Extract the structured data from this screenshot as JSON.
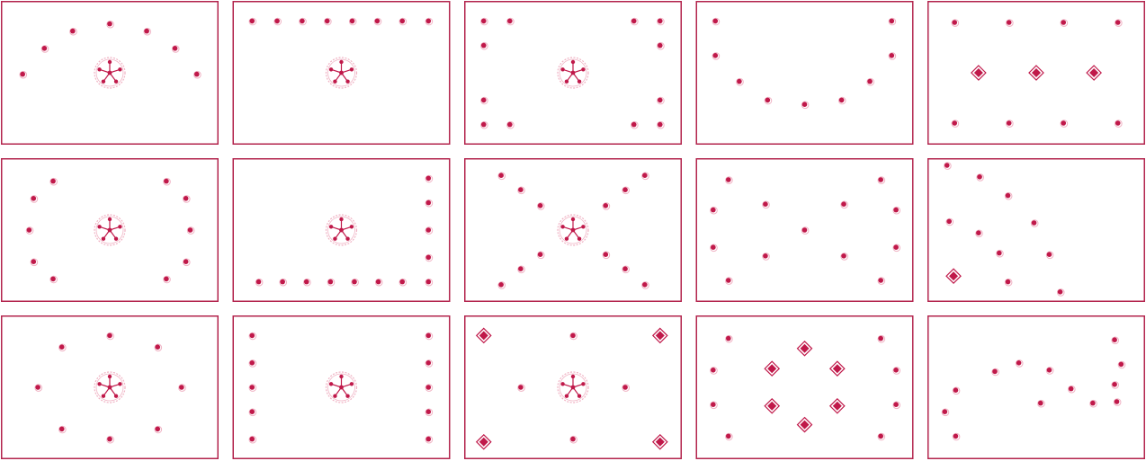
{
  "colors": {
    "frame": "#b3244d",
    "mark": "#c0194a",
    "hub_ring": "#f0b3c4",
    "background": "#ffffff"
  },
  "icons": {
    "point": "circle-dot-icon",
    "anchor": "diamond-icon",
    "hub": "hub-spoke-icon"
  },
  "panels": [
    {
      "name": "panel-arc-with-hub",
      "hub": [
        0.5,
        0.5
      ],
      "points": [
        [
          0.5,
          0.16
        ],
        [
          0.33,
          0.21
        ],
        [
          0.67,
          0.21
        ],
        [
          0.2,
          0.33
        ],
        [
          0.8,
          0.33
        ],
        [
          0.1,
          0.51
        ],
        [
          0.9,
          0.51
        ]
      ],
      "anchors": []
    },
    {
      "name": "panel-top-row-with-hub",
      "hub": [
        0.5,
        0.5
      ],
      "points": [
        [
          0.09,
          0.14
        ],
        [
          0.205,
          0.14
        ],
        [
          0.32,
          0.14
        ],
        [
          0.435,
          0.14
        ],
        [
          0.55,
          0.14
        ],
        [
          0.665,
          0.14
        ],
        [
          0.78,
          0.14
        ],
        [
          0.9,
          0.14
        ]
      ],
      "anchors": []
    },
    {
      "name": "panel-corners-with-hub",
      "hub": [
        0.5,
        0.5
      ],
      "points": [
        [
          0.09,
          0.14
        ],
        [
          0.21,
          0.14
        ],
        [
          0.78,
          0.14
        ],
        [
          0.9,
          0.14
        ],
        [
          0.09,
          0.31
        ],
        [
          0.9,
          0.31
        ],
        [
          0.09,
          0.69
        ],
        [
          0.9,
          0.69
        ],
        [
          0.09,
          0.86
        ],
        [
          0.21,
          0.86
        ],
        [
          0.78,
          0.86
        ],
        [
          0.9,
          0.86
        ]
      ],
      "anchors": []
    },
    {
      "name": "panel-u-curve",
      "hub": null,
      "points": [
        [
          0.09,
          0.14
        ],
        [
          0.9,
          0.14
        ],
        [
          0.09,
          0.38
        ],
        [
          0.9,
          0.38
        ],
        [
          0.2,
          0.56
        ],
        [
          0.8,
          0.56
        ],
        [
          0.33,
          0.69
        ],
        [
          0.67,
          0.69
        ],
        [
          0.5,
          0.72
        ]
      ],
      "anchors": []
    },
    {
      "name": "panel-grid-with-diamonds",
      "hub": null,
      "points": [
        [
          0.125,
          0.15
        ],
        [
          0.375,
          0.15
        ],
        [
          0.625,
          0.15
        ],
        [
          0.875,
          0.15
        ],
        [
          0.125,
          0.85
        ],
        [
          0.375,
          0.85
        ],
        [
          0.625,
          0.85
        ],
        [
          0.875,
          0.85
        ]
      ],
      "anchors": [
        [
          0.235,
          0.5
        ],
        [
          0.5,
          0.5
        ],
        [
          0.765,
          0.5
        ]
      ]
    },
    {
      "name": "panel-ring-with-hub",
      "hub": [
        0.5,
        0.5
      ],
      "points": [
        [
          0.24,
          0.16
        ],
        [
          0.76,
          0.16
        ],
        [
          0.15,
          0.28
        ],
        [
          0.85,
          0.28
        ],
        [
          0.13,
          0.5
        ],
        [
          0.87,
          0.5
        ],
        [
          0.15,
          0.72
        ],
        [
          0.85,
          0.72
        ],
        [
          0.24,
          0.84
        ],
        [
          0.76,
          0.84
        ]
      ],
      "anchors": []
    },
    {
      "name": "panel-l-shape-with-hub",
      "hub": [
        0.5,
        0.5
      ],
      "points": [
        [
          0.9,
          0.14
        ],
        [
          0.9,
          0.31
        ],
        [
          0.9,
          0.5
        ],
        [
          0.9,
          0.69
        ],
        [
          0.12,
          0.86
        ],
        [
          0.23,
          0.86
        ],
        [
          0.34,
          0.86
        ],
        [
          0.45,
          0.86
        ],
        [
          0.56,
          0.86
        ],
        [
          0.67,
          0.86
        ],
        [
          0.78,
          0.86
        ],
        [
          0.9,
          0.86
        ]
      ],
      "anchors": []
    },
    {
      "name": "panel-x-shape-with-hub",
      "hub": [
        0.5,
        0.5
      ],
      "points": [
        [
          0.17,
          0.12
        ],
        [
          0.83,
          0.12
        ],
        [
          0.26,
          0.22
        ],
        [
          0.74,
          0.22
        ],
        [
          0.35,
          0.33
        ],
        [
          0.65,
          0.33
        ],
        [
          0.35,
          0.67
        ],
        [
          0.65,
          0.67
        ],
        [
          0.26,
          0.77
        ],
        [
          0.74,
          0.77
        ],
        [
          0.17,
          0.88
        ],
        [
          0.83,
          0.88
        ]
      ],
      "anchors": []
    },
    {
      "name": "panel-scattered-grid",
      "hub": null,
      "points": [
        [
          0.15,
          0.15
        ],
        [
          0.85,
          0.15
        ],
        [
          0.08,
          0.36
        ],
        [
          0.92,
          0.36
        ],
        [
          0.32,
          0.32
        ],
        [
          0.68,
          0.32
        ],
        [
          0.5,
          0.5
        ],
        [
          0.08,
          0.62
        ],
        [
          0.92,
          0.62
        ],
        [
          0.32,
          0.68
        ],
        [
          0.68,
          0.68
        ],
        [
          0.15,
          0.85
        ],
        [
          0.85,
          0.85
        ]
      ],
      "anchors": []
    },
    {
      "name": "panel-diagonal-scatter",
      "hub": null,
      "points": [
        [
          0.09,
          0.05
        ],
        [
          0.24,
          0.13
        ],
        [
          0.37,
          0.26
        ],
        [
          0.1,
          0.44
        ],
        [
          0.235,
          0.52
        ],
        [
          0.49,
          0.45
        ],
        [
          0.33,
          0.66
        ],
        [
          0.56,
          0.67
        ],
        [
          0.37,
          0.86
        ],
        [
          0.61,
          0.93
        ]
      ],
      "anchors": [
        [
          0.12,
          0.82
        ]
      ]
    },
    {
      "name": "panel-hexagon-with-hub",
      "hub": [
        0.5,
        0.5
      ],
      "points": [
        [
          0.5,
          0.14
        ],
        [
          0.28,
          0.22
        ],
        [
          0.72,
          0.22
        ],
        [
          0.17,
          0.5
        ],
        [
          0.83,
          0.5
        ],
        [
          0.28,
          0.79
        ],
        [
          0.72,
          0.79
        ],
        [
          0.5,
          0.86
        ]
      ],
      "anchors": []
    },
    {
      "name": "panel-side-columns-with-hub",
      "hub": [
        0.5,
        0.5
      ],
      "points": [
        [
          0.09,
          0.14
        ],
        [
          0.9,
          0.14
        ],
        [
          0.09,
          0.33
        ],
        [
          0.9,
          0.33
        ],
        [
          0.09,
          0.5
        ],
        [
          0.9,
          0.5
        ],
        [
          0.09,
          0.67
        ],
        [
          0.9,
          0.67
        ],
        [
          0.09,
          0.86
        ],
        [
          0.9,
          0.86
        ]
      ],
      "anchors": []
    },
    {
      "name": "panel-cross-with-diamonds",
      "hub": [
        0.5,
        0.5
      ],
      "points": [
        [
          0.5,
          0.14
        ],
        [
          0.26,
          0.5
        ],
        [
          0.74,
          0.5
        ],
        [
          0.5,
          0.86
        ]
      ],
      "anchors": [
        [
          0.09,
          0.14
        ],
        [
          0.9,
          0.14
        ],
        [
          0.09,
          0.88
        ],
        [
          0.9,
          0.88
        ]
      ]
    },
    {
      "name": "panel-diamond-ring",
      "hub": null,
      "points": [
        [
          0.15,
          0.16
        ],
        [
          0.85,
          0.16
        ],
        [
          0.08,
          0.38
        ],
        [
          0.92,
          0.38
        ],
        [
          0.08,
          0.62
        ],
        [
          0.92,
          0.62
        ],
        [
          0.15,
          0.84
        ],
        [
          0.85,
          0.84
        ]
      ],
      "anchors": [
        [
          0.5,
          0.23
        ],
        [
          0.35,
          0.37
        ],
        [
          0.65,
          0.37
        ],
        [
          0.35,
          0.63
        ],
        [
          0.65,
          0.63
        ],
        [
          0.5,
          0.76
        ]
      ]
    },
    {
      "name": "panel-s-curve",
      "hub": null,
      "points": [
        [
          0.86,
          0.17
        ],
        [
          0.89,
          0.34
        ],
        [
          0.86,
          0.48
        ],
        [
          0.31,
          0.39
        ],
        [
          0.42,
          0.33
        ],
        [
          0.56,
          0.38
        ],
        [
          0.66,
          0.51
        ],
        [
          0.76,
          0.61
        ],
        [
          0.13,
          0.52
        ],
        [
          0.08,
          0.67
        ],
        [
          0.52,
          0.61
        ],
        [
          0.87,
          0.6
        ],
        [
          0.13,
          0.84
        ]
      ],
      "anchors": []
    }
  ]
}
